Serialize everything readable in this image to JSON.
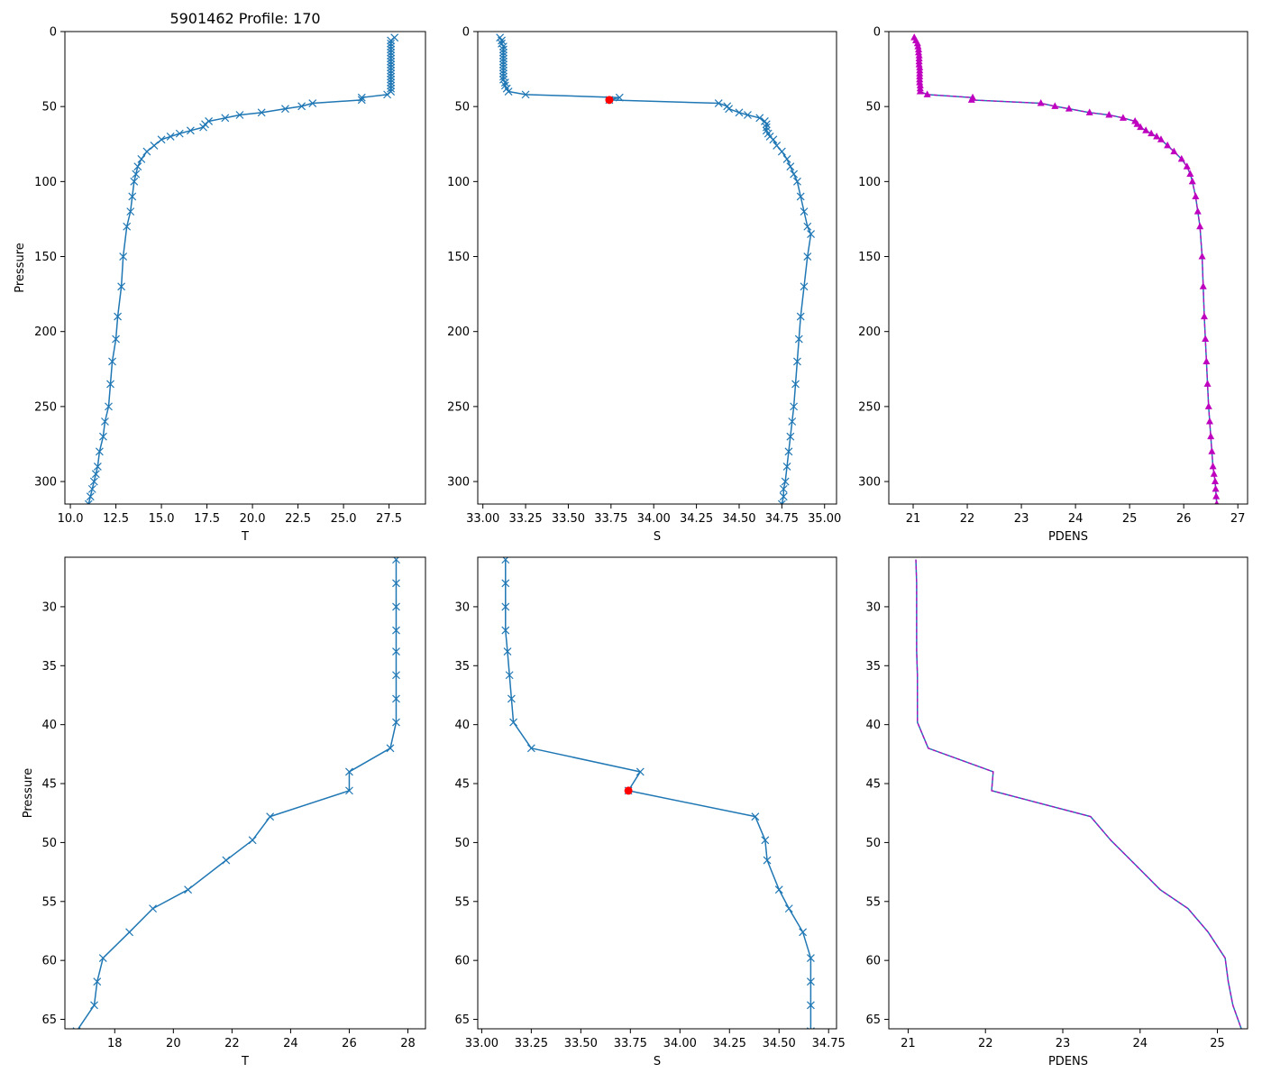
{
  "figure_title": "5901462 Profile: 170",
  "colors": {
    "line": "#1f77b4",
    "density_marker": "#bf00bf",
    "flag_point": "#ff0000",
    "axes": "#000000"
  },
  "chart_data": [
    {
      "id": "top-temperature",
      "type": "line",
      "title": "5901462 Profile: 170",
      "xlabel": "T",
      "ylabel": "Pressure",
      "xlim": [
        9.7,
        29.5
      ],
      "ylim": [
        315,
        0
      ],
      "y_inverted": true,
      "xticks": [
        10.0,
        12.5,
        15.0,
        17.5,
        20.0,
        22.5,
        25.0,
        27.5
      ],
      "xtick_labels": [
        "10.0",
        "12.5",
        "15.0",
        "17.5",
        "20.0",
        "22.5",
        "25.0",
        "27.5"
      ],
      "yticks": [
        0,
        50,
        100,
        150,
        200,
        250,
        300
      ],
      "ytick_labels": [
        "0",
        "50",
        "100",
        "150",
        "200",
        "250",
        "300"
      ],
      "marker": "x",
      "series": [
        {
          "name": "T",
          "x": [
            27.8,
            27.6,
            27.6,
            27.6,
            27.6,
            27.6,
            27.6,
            27.6,
            27.6,
            27.6,
            27.6,
            27.6,
            27.6,
            27.6,
            27.6,
            27.6,
            27.6,
            27.6,
            27.6,
            27.4,
            26.0,
            26.0,
            23.3,
            22.7,
            21.8,
            20.5,
            19.3,
            18.5,
            17.6,
            17.4,
            17.3,
            16.6,
            16.0,
            15.5,
            15.0,
            14.6,
            14.2,
            13.9,
            13.7,
            13.6,
            13.5,
            13.4,
            13.3,
            13.1,
            12.9,
            12.8,
            12.6,
            12.5,
            12.3,
            12.2,
            12.1,
            11.9,
            11.8,
            11.6,
            11.5,
            11.4,
            11.3,
            11.2,
            11.1,
            11.0
          ],
          "y": [
            4,
            6,
            8,
            10,
            12,
            14,
            16,
            18,
            20,
            22,
            24,
            26,
            28,
            30,
            32,
            34,
            36,
            38,
            40,
            42,
            44,
            45.6,
            47.8,
            49.8,
            51.5,
            54,
            55.6,
            57.6,
            59.8,
            61.8,
            63.8,
            66,
            68,
            70,
            72,
            76,
            80,
            85,
            90,
            95,
            100,
            110,
            120,
            130,
            150,
            170,
            190,
            205,
            220,
            235,
            250,
            260,
            270,
            280,
            290,
            295,
            300,
            305,
            310,
            315
          ]
        }
      ]
    },
    {
      "id": "top-salinity",
      "type": "line",
      "title": "",
      "xlabel": "S",
      "ylabel": "",
      "xlim": [
        32.97,
        35.07
      ],
      "ylim": [
        315,
        0
      ],
      "y_inverted": true,
      "xticks": [
        33.0,
        33.25,
        33.5,
        33.75,
        34.0,
        34.25,
        34.5,
        34.75,
        35.0
      ],
      "xtick_labels": [
        "33.00",
        "33.25",
        "33.50",
        "33.75",
        "34.00",
        "34.25",
        "34.50",
        "34.75",
        "35.00"
      ],
      "yticks": [
        0,
        50,
        100,
        150,
        200,
        250,
        300
      ],
      "ytick_labels": [
        "0",
        "50",
        "100",
        "150",
        "200",
        "250",
        "300"
      ],
      "marker": "x",
      "series": [
        {
          "name": "S",
          "x": [
            33.1,
            33.11,
            33.11,
            33.12,
            33.12,
            33.12,
            33.12,
            33.12,
            33.12,
            33.12,
            33.12,
            33.12,
            33.12,
            33.12,
            33.12,
            33.13,
            33.13,
            33.14,
            33.15,
            33.25,
            33.8,
            33.74,
            34.38,
            34.43,
            34.44,
            34.5,
            34.55,
            34.62,
            34.65,
            34.66,
            34.66,
            34.66,
            34.67,
            34.68,
            34.7,
            34.72,
            34.75,
            34.78,
            34.8,
            34.82,
            34.84,
            34.86,
            34.88,
            34.9,
            34.92,
            34.9,
            34.88,
            34.86,
            34.85,
            34.84,
            34.83,
            34.82,
            34.81,
            34.8,
            34.79,
            34.78,
            34.77,
            34.76,
            34.76,
            34.75
          ],
          "y": [
            4,
            6,
            8,
            10,
            12,
            14,
            16,
            18,
            20,
            22,
            24,
            26,
            28,
            30,
            32,
            34,
            36,
            38,
            40,
            42,
            44,
            45.6,
            47.8,
            49.8,
            51.5,
            54,
            55.6,
            57.6,
            59.8,
            61.8,
            63.8,
            66,
            68,
            70,
            72,
            76,
            80,
            85,
            90,
            95,
            100,
            110,
            120,
            130,
            135,
            150,
            170,
            190,
            205,
            220,
            235,
            250,
            260,
            270,
            280,
            290,
            300,
            305,
            310,
            315
          ]
        }
      ],
      "flagged_point": {
        "x": 33.74,
        "y": 45.6
      }
    },
    {
      "id": "top-density",
      "type": "line",
      "title": "",
      "xlabel": "PDENS",
      "ylabel": "",
      "xlim": [
        20.55,
        27.18
      ],
      "ylim": [
        315,
        0
      ],
      "y_inverted": true,
      "xticks": [
        21,
        22,
        23,
        24,
        25,
        26,
        27
      ],
      "xtick_labels": [
        "21",
        "22",
        "23",
        "24",
        "25",
        "26",
        "27"
      ],
      "yticks": [
        0,
        50,
        100,
        150,
        200,
        250,
        300
      ],
      "ytick_labels": [
        "0",
        "50",
        "100",
        "150",
        "200",
        "250",
        "300"
      ],
      "marker": "triangle",
      "series": [
        {
          "name": "PDENS",
          "x": [
            21.02,
            21.05,
            21.08,
            21.09,
            21.1,
            21.1,
            21.11,
            21.11,
            21.11,
            21.11,
            21.12,
            21.12,
            21.12,
            21.12,
            21.12,
            21.12,
            21.13,
            21.13,
            21.13,
            21.26,
            22.1,
            22.08,
            23.36,
            23.62,
            23.88,
            24.26,
            24.62,
            24.88,
            25.1,
            25.14,
            25.2,
            25.3,
            25.4,
            25.5,
            25.58,
            25.7,
            25.82,
            25.96,
            26.06,
            26.12,
            26.16,
            26.22,
            26.26,
            26.3,
            26.34,
            26.36,
            26.38,
            26.4,
            26.42,
            26.44,
            26.46,
            26.48,
            26.5,
            26.52,
            26.54,
            26.56,
            26.58,
            26.59,
            26.6,
            26.61
          ],
          "y": [
            4,
            6,
            8,
            10,
            12,
            14,
            16,
            18,
            20,
            22,
            24,
            26,
            28,
            30,
            32,
            34,
            36,
            38,
            40,
            42,
            44,
            45.6,
            47.8,
            49.8,
            51.5,
            54,
            55.6,
            57.6,
            59.8,
            61.8,
            63.8,
            66,
            68,
            70,
            72,
            76,
            80,
            85,
            90,
            95,
            100,
            110,
            120,
            130,
            150,
            170,
            190,
            205,
            220,
            235,
            250,
            260,
            270,
            280,
            290,
            295,
            300,
            305,
            310,
            315
          ]
        }
      ]
    },
    {
      "id": "bottom-temperature",
      "type": "line",
      "title": "",
      "xlabel": "T",
      "ylabel": "Pressure",
      "xlim": [
        16.3,
        28.6
      ],
      "ylim": [
        65.8,
        25.8
      ],
      "y_inverted": true,
      "xticks": [
        18,
        20,
        22,
        24,
        26,
        28
      ],
      "xtick_labels": [
        "18",
        "20",
        "22",
        "24",
        "26",
        "28"
      ],
      "yticks": [
        30,
        35,
        40,
        45,
        50,
        55,
        60,
        65
      ],
      "ytick_labels": [
        "30",
        "35",
        "40",
        "45",
        "50",
        "55",
        "60",
        "65"
      ],
      "marker": "x",
      "series": [
        {
          "name": "T",
          "x": [
            27.6,
            27.6,
            27.6,
            27.6,
            27.6,
            27.6,
            27.6,
            27.6,
            27.4,
            26.0,
            26.0,
            23.3,
            22.7,
            21.8,
            20.5,
            19.3,
            18.5,
            17.6,
            17.4,
            17.3,
            16.7
          ],
          "y": [
            26,
            28,
            30,
            32,
            33.8,
            35.8,
            37.8,
            39.8,
            42,
            44,
            45.6,
            47.8,
            49.8,
            51.5,
            54,
            55.6,
            57.6,
            59.8,
            61.8,
            63.8,
            66
          ]
        }
      ]
    },
    {
      "id": "bottom-salinity",
      "type": "line",
      "title": "",
      "xlabel": "S",
      "ylabel": "",
      "xlim": [
        32.98,
        34.79
      ],
      "ylim": [
        65.8,
        25.8
      ],
      "y_inverted": true,
      "xticks": [
        33.0,
        33.25,
        33.5,
        33.75,
        34.0,
        34.25,
        34.5,
        34.75
      ],
      "xtick_labels": [
        "33.00",
        "33.25",
        "33.50",
        "33.75",
        "34.00",
        "34.25",
        "34.50",
        "34.75"
      ],
      "yticks": [
        30,
        35,
        40,
        45,
        50,
        55,
        60,
        65
      ],
      "ytick_labels": [
        "30",
        "35",
        "40",
        "45",
        "50",
        "55",
        "60",
        "65"
      ],
      "marker": "x",
      "series": [
        {
          "name": "S",
          "x": [
            33.12,
            33.12,
            33.12,
            33.12,
            33.13,
            33.14,
            33.15,
            33.16,
            33.25,
            33.8,
            33.74,
            34.38,
            34.43,
            34.44,
            34.5,
            34.55,
            34.62,
            34.66,
            34.66,
            34.66,
            34.66
          ],
          "y": [
            26,
            28,
            30,
            32,
            33.8,
            35.8,
            37.8,
            39.8,
            42,
            44,
            45.6,
            47.8,
            49.8,
            51.5,
            54,
            55.6,
            57.6,
            59.8,
            61.8,
            63.8,
            66
          ]
        }
      ],
      "flagged_point": {
        "x": 33.74,
        "y": 45.6
      }
    },
    {
      "id": "bottom-density",
      "type": "line",
      "title": "",
      "xlabel": "PDENS",
      "ylabel": "",
      "xlim": [
        20.75,
        25.39
      ],
      "ylim": [
        65.8,
        25.8
      ],
      "y_inverted": true,
      "xticks": [
        21,
        22,
        23,
        24,
        25
      ],
      "xtick_labels": [
        "21",
        "22",
        "23",
        "24",
        "25"
      ],
      "yticks": [
        30,
        35,
        40,
        45,
        50,
        55,
        60,
        65
      ],
      "ytick_labels": [
        "30",
        "35",
        "40",
        "45",
        "50",
        "55",
        "60",
        "65"
      ],
      "marker": "none",
      "series": [
        {
          "name": "PDENS",
          "x": [
            21.1,
            21.11,
            21.11,
            21.11,
            21.11,
            21.12,
            21.12,
            21.12,
            21.26,
            22.1,
            22.08,
            23.36,
            23.62,
            23.88,
            24.26,
            24.62,
            24.88,
            25.1,
            25.14,
            25.2,
            25.32
          ],
          "y": [
            26,
            28,
            30,
            32,
            33.8,
            35.8,
            37.8,
            39.8,
            42,
            44,
            45.6,
            47.8,
            49.8,
            51.5,
            54,
            55.6,
            57.6,
            59.8,
            61.8,
            63.8,
            66
          ]
        }
      ]
    }
  ]
}
